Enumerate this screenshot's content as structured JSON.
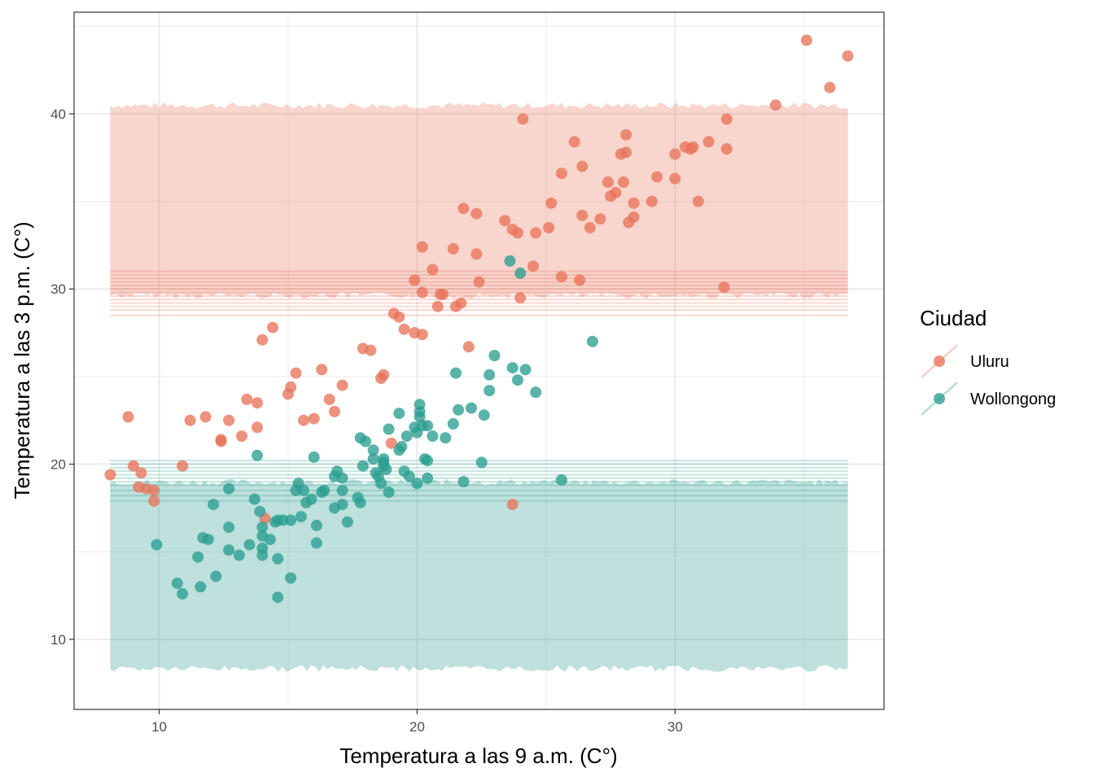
{
  "chart_data": {
    "type": "scatter",
    "xlabel": "Temperatura a las 9 a.m. (C°)",
    "ylabel": "Temperatura a las 3 p.m. (C°)",
    "xlim": [
      6.7,
      38.1
    ],
    "ylim": [
      6.0,
      45.8
    ],
    "x_ticks": [
      10,
      20,
      30
    ],
    "y_ticks": [
      10,
      20,
      30,
      40
    ],
    "grid": true,
    "legend": {
      "title": "Ciudad",
      "position": "right",
      "entries": [
        "Uluru",
        "Wollongong"
      ]
    },
    "colors": {
      "Uluru": "#e8735a",
      "Wollongong": "#2a9d8f"
    },
    "prediction_bands": [
      {
        "name": "Uluru",
        "x_range": [
          8.1,
          36.7
        ],
        "y_low": 29.7,
        "y_high": 40.4,
        "mean_lines": [
          28.5,
          28.8,
          29.0,
          29.2,
          29.4,
          29.6,
          29.8,
          30.0,
          30.2,
          30.4,
          30.6,
          30.8,
          31.0
        ]
      },
      {
        "name": "Wollongong",
        "x_range": [
          8.1,
          36.7
        ],
        "y_low": 8.4,
        "y_high": 18.9,
        "mean_lines": [
          17.9,
          18.2,
          18.5,
          18.8,
          19.0,
          19.2,
          19.4,
          19.6,
          19.8,
          20.0,
          20.2
        ]
      }
    ],
    "series": [
      {
        "name": "Uluru",
        "points": [
          [
            8.1,
            19.4
          ],
          [
            8.8,
            22.7
          ],
          [
            9.0,
            19.9
          ],
          [
            9.3,
            19.5
          ],
          [
            9.2,
            18.7
          ],
          [
            9.5,
            18.6
          ],
          [
            9.8,
            18.5
          ],
          [
            9.8,
            17.9
          ],
          [
            10.9,
            19.9
          ],
          [
            11.2,
            22.5
          ],
          [
            11.8,
            22.7
          ],
          [
            12.4,
            21.3
          ],
          [
            12.4,
            21.4
          ],
          [
            12.7,
            22.5
          ],
          [
            13.2,
            21.6
          ],
          [
            13.4,
            23.7
          ],
          [
            13.8,
            23.5
          ],
          [
            13.8,
            22.1
          ],
          [
            14.0,
            27.1
          ],
          [
            14.1,
            16.9
          ],
          [
            14.4,
            27.8
          ],
          [
            15.0,
            24.0
          ],
          [
            15.1,
            24.4
          ],
          [
            15.3,
            25.2
          ],
          [
            15.6,
            22.5
          ],
          [
            16.0,
            22.6
          ],
          [
            16.3,
            25.4
          ],
          [
            16.6,
            23.7
          ],
          [
            16.8,
            23.0
          ],
          [
            17.1,
            24.5
          ],
          [
            17.9,
            26.6
          ],
          [
            18.2,
            26.5
          ],
          [
            18.6,
            24.9
          ],
          [
            18.7,
            25.1
          ],
          [
            19.0,
            21.2
          ],
          [
            19.1,
            28.6
          ],
          [
            19.3,
            28.4
          ],
          [
            19.5,
            27.7
          ],
          [
            19.9,
            27.5
          ],
          [
            19.9,
            30.5
          ],
          [
            20.2,
            27.4
          ],
          [
            20.2,
            29.8
          ],
          [
            20.2,
            32.4
          ],
          [
            20.6,
            31.1
          ],
          [
            20.8,
            29.0
          ],
          [
            20.9,
            29.7
          ],
          [
            21.0,
            29.7
          ],
          [
            21.4,
            32.3
          ],
          [
            21.5,
            29.0
          ],
          [
            21.7,
            29.2
          ],
          [
            21.8,
            34.6
          ],
          [
            22.0,
            26.7
          ],
          [
            22.3,
            34.3
          ],
          [
            22.3,
            32.0
          ],
          [
            22.4,
            30.4
          ],
          [
            23.4,
            33.9
          ],
          [
            23.7,
            33.4
          ],
          [
            23.7,
            17.7
          ],
          [
            23.9,
            33.2
          ],
          [
            24.0,
            29.5
          ],
          [
            24.1,
            39.7
          ],
          [
            24.5,
            31.3
          ],
          [
            24.6,
            33.2
          ],
          [
            25.1,
            33.5
          ],
          [
            25.2,
            34.9
          ],
          [
            25.6,
            30.7
          ],
          [
            25.6,
            36.6
          ],
          [
            26.1,
            38.4
          ],
          [
            26.3,
            30.5
          ],
          [
            26.4,
            34.2
          ],
          [
            26.4,
            37.0
          ],
          [
            26.7,
            33.5
          ],
          [
            27.1,
            34.0
          ],
          [
            27.4,
            36.1
          ],
          [
            27.5,
            35.3
          ],
          [
            27.7,
            35.5
          ],
          [
            27.9,
            37.7
          ],
          [
            28.0,
            36.1
          ],
          [
            28.1,
            37.8
          ],
          [
            28.1,
            38.8
          ],
          [
            28.2,
            33.8
          ],
          [
            28.4,
            34.9
          ],
          [
            28.4,
            34.1
          ],
          [
            29.1,
            35.0
          ],
          [
            29.3,
            36.4
          ],
          [
            30.0,
            37.7
          ],
          [
            30.0,
            36.3
          ],
          [
            30.4,
            38.1
          ],
          [
            30.6,
            38.0
          ],
          [
            30.7,
            38.1
          ],
          [
            30.9,
            35.0
          ],
          [
            31.3,
            38.4
          ],
          [
            31.9,
            30.1
          ],
          [
            32.0,
            39.7
          ],
          [
            32.0,
            38.0
          ],
          [
            33.9,
            40.5
          ],
          [
            35.1,
            44.2
          ],
          [
            36.0,
            41.5
          ],
          [
            36.7,
            43.3
          ]
        ]
      },
      {
        "name": "Wollongong",
        "points": [
          [
            9.9,
            15.4
          ],
          [
            10.7,
            13.2
          ],
          [
            10.9,
            12.6
          ],
          [
            11.5,
            14.7
          ],
          [
            11.6,
            13.0
          ],
          [
            11.7,
            15.8
          ],
          [
            11.9,
            15.7
          ],
          [
            12.1,
            17.7
          ],
          [
            12.2,
            13.6
          ],
          [
            12.7,
            18.6
          ],
          [
            12.7,
            16.4
          ],
          [
            12.7,
            15.1
          ],
          [
            13.1,
            14.8
          ],
          [
            13.5,
            15.4
          ],
          [
            13.7,
            18.0
          ],
          [
            13.8,
            20.5
          ],
          [
            13.9,
            17.3
          ],
          [
            14.0,
            15.9
          ],
          [
            14.0,
            16.4
          ],
          [
            14.0,
            15.2
          ],
          [
            14.0,
            14.8
          ],
          [
            14.3,
            15.7
          ],
          [
            14.5,
            16.7
          ],
          [
            14.6,
            16.8
          ],
          [
            14.6,
            14.6
          ],
          [
            14.6,
            12.4
          ],
          [
            14.8,
            16.8
          ],
          [
            15.1,
            16.8
          ],
          [
            15.1,
            13.5
          ],
          [
            15.3,
            18.5
          ],
          [
            15.4,
            18.9
          ],
          [
            15.5,
            17.0
          ],
          [
            15.6,
            18.5
          ],
          [
            15.7,
            17.8
          ],
          [
            15.9,
            18.0
          ],
          [
            16.0,
            20.4
          ],
          [
            16.1,
            16.5
          ],
          [
            16.1,
            15.5
          ],
          [
            16.3,
            18.4
          ],
          [
            16.4,
            18.5
          ],
          [
            16.8,
            19.3
          ],
          [
            16.8,
            17.5
          ],
          [
            16.9,
            19.6
          ],
          [
            17.1,
            17.7
          ],
          [
            17.1,
            18.5
          ],
          [
            17.1,
            19.2
          ],
          [
            17.3,
            16.7
          ],
          [
            17.7,
            18.1
          ],
          [
            17.8,
            17.8
          ],
          [
            17.8,
            21.5
          ],
          [
            17.9,
            19.9
          ],
          [
            18.0,
            21.3
          ],
          [
            18.3,
            20.8
          ],
          [
            18.3,
            20.3
          ],
          [
            18.4,
            19.5
          ],
          [
            18.5,
            19.3
          ],
          [
            18.6,
            18.9
          ],
          [
            18.7,
            20.3
          ],
          [
            18.7,
            20.1
          ],
          [
            18.7,
            19.9
          ],
          [
            18.8,
            19.7
          ],
          [
            18.9,
            22.0
          ],
          [
            18.9,
            18.4
          ],
          [
            19.3,
            22.9
          ],
          [
            19.3,
            20.8
          ],
          [
            19.4,
            21.0
          ],
          [
            19.5,
            19.6
          ],
          [
            19.6,
            21.6
          ],
          [
            19.7,
            19.3
          ],
          [
            19.9,
            22.1
          ],
          [
            20.0,
            18.9
          ],
          [
            20.0,
            21.8
          ],
          [
            20.1,
            23.4
          ],
          [
            20.1,
            23.0
          ],
          [
            20.1,
            22.7
          ],
          [
            20.2,
            22.2
          ],
          [
            20.3,
            20.3
          ],
          [
            20.4,
            22.2
          ],
          [
            20.4,
            20.2
          ],
          [
            20.4,
            19.2
          ],
          [
            20.6,
            21.6
          ],
          [
            21.1,
            21.5
          ],
          [
            21.4,
            22.3
          ],
          [
            21.5,
            25.2
          ],
          [
            21.6,
            23.1
          ],
          [
            21.8,
            19.0
          ],
          [
            22.1,
            23.2
          ],
          [
            22.5,
            20.1
          ],
          [
            22.6,
            22.8
          ],
          [
            22.8,
            25.1
          ],
          [
            22.8,
            24.2
          ],
          [
            23.0,
            26.2
          ],
          [
            23.6,
            31.6
          ],
          [
            23.7,
            25.5
          ],
          [
            23.9,
            24.8
          ],
          [
            24.0,
            30.9
          ],
          [
            24.2,
            25.4
          ],
          [
            24.6,
            24.1
          ],
          [
            25.6,
            19.1
          ],
          [
            26.8,
            27.0
          ]
        ]
      }
    ]
  }
}
